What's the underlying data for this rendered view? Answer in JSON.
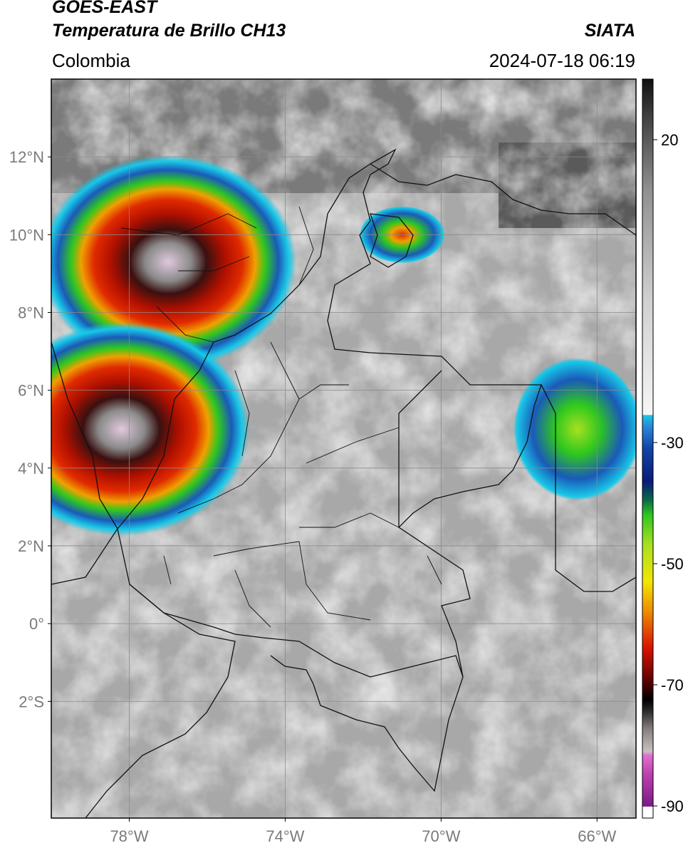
{
  "header": {
    "title_line1": "GOES-EAST",
    "title_line2": "Temperatura de Brillo CH13",
    "brand": "SIATA",
    "region": "Colombia",
    "timestamp": "2024-07-18 06:19"
  },
  "map": {
    "lon_range": [
      -80,
      -65
    ],
    "lat_range": [
      -5,
      14
    ],
    "lat_ticks": [
      {
        "value": 12,
        "label": "12°N"
      },
      {
        "value": 10,
        "label": "10°N"
      },
      {
        "value": 8,
        "label": "8°N"
      },
      {
        "value": 6,
        "label": "6°N"
      },
      {
        "value": 4,
        "label": "4°N"
      },
      {
        "value": 2,
        "label": "2°N"
      },
      {
        "value": 0,
        "label": "0°"
      },
      {
        "value": -2,
        "label": "2°S"
      }
    ],
    "lon_ticks": [
      {
        "value": -78,
        "label": "78°W"
      },
      {
        "value": -74,
        "label": "74°W"
      },
      {
        "value": -70,
        "label": "70°W"
      },
      {
        "value": -66,
        "label": "66°W"
      }
    ],
    "grid": true
  },
  "colorbar": {
    "range": [
      -92,
      30
    ],
    "ticks": [
      {
        "value": 20,
        "label": "20"
      },
      {
        "value": -30,
        "label": "-30"
      },
      {
        "value": -50,
        "label": "-50"
      },
      {
        "value": -70,
        "label": "-70"
      },
      {
        "value": -90,
        "label": "-90"
      }
    ],
    "colors": {
      "warm_dark": "#151515",
      "warm_grey": "#7d7d7d",
      "cloud_white": "#f0f0f0",
      "cyan": "#18c8e8",
      "blue": "#1244a8",
      "dark_blue": "#0a1a78",
      "green": "#2fc81e",
      "yellow": "#f2e600",
      "orange": "#f08c00",
      "red": "#d81200",
      "dark_red": "#4a0000",
      "magenta": "#e060c8",
      "purple": "#7a1a88"
    }
  },
  "features": [
    {
      "name": "cloud-cluster-caribbean",
      "lon": -77.0,
      "lat": 9.3,
      "level": "severe"
    },
    {
      "name": "cloud-cluster-pacific",
      "lon": -78.2,
      "lat": 5.0,
      "level": "severe"
    },
    {
      "name": "cloud-cluster-maracaibo",
      "lon": -71.0,
      "lat": 10.0,
      "level": "moderate"
    },
    {
      "name": "cloud-cluster-east",
      "lon": -66.5,
      "lat": 5.0,
      "level": "light"
    }
  ]
}
